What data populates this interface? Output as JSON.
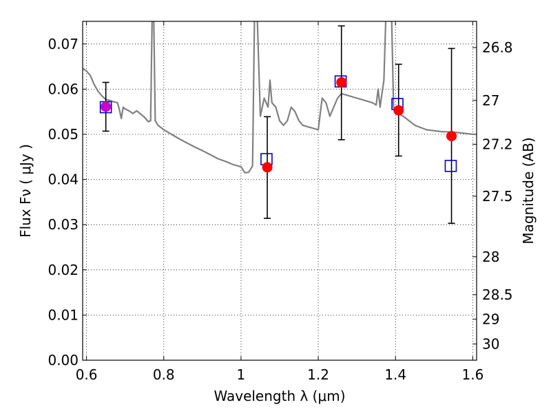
{
  "chart_data": {
    "type": "scatter",
    "xlabel": "Wavelength  λ (μm)",
    "ylabel": "Flux  Fν  ( μJy )",
    "y2label": "Magnitude (AB)",
    "xlim": [
      0.59,
      1.61
    ],
    "ylim": [
      0.0,
      0.075
    ],
    "x_ticks": [
      {
        "value": 0.6,
        "label": "0.6"
      },
      {
        "value": 0.8,
        "label": "0.8"
      },
      {
        "value": 1.0,
        "label": "1"
      },
      {
        "value": 1.2,
        "label": "1.2"
      },
      {
        "value": 1.4,
        "label": "1.4"
      },
      {
        "value": 1.6,
        "label": "1.6"
      }
    ],
    "y_ticks": [
      {
        "value": 0.0,
        "label": "0.00"
      },
      {
        "value": 0.01,
        "label": "0.01"
      },
      {
        "value": 0.02,
        "label": "0.02"
      },
      {
        "value": 0.03,
        "label": "0.03"
      },
      {
        "value": 0.04,
        "label": "0.04"
      },
      {
        "value": 0.05,
        "label": "0.05"
      },
      {
        "value": 0.06,
        "label": "0.06"
      },
      {
        "value": 0.07,
        "label": "0.07"
      }
    ],
    "y2_ticks": [
      {
        "flux": 0.0692,
        "label": "26.8"
      },
      {
        "flux": 0.0575,
        "label": "27"
      },
      {
        "flux": 0.0478,
        "label": "27.2"
      },
      {
        "flux": 0.0363,
        "label": "27.5"
      },
      {
        "flux": 0.0229,
        "label": "28"
      },
      {
        "flux": 0.0145,
        "label": "28.5"
      },
      {
        "flux": 0.0091,
        "label": "29"
      },
      {
        "flux": 0.0036,
        "label": "30"
      }
    ],
    "grid": true,
    "colors": {
      "model": "#808080",
      "observed": "#ff0000",
      "synthetic": "#0000cc",
      "errorbar": "#000000",
      "grid": "#000000"
    },
    "series": [
      {
        "kind": "line",
        "points": [
          [
            0.59,
            0.0646
          ],
          [
            0.6,
            0.064
          ],
          [
            0.61,
            0.063
          ],
          [
            0.62,
            0.061
          ],
          [
            0.63,
            0.0595
          ],
          [
            0.64,
            0.0585
          ],
          [
            0.65,
            0.0577
          ],
          [
            0.66,
            0.0575
          ],
          [
            0.67,
            0.0572
          ],
          [
            0.68,
            0.057
          ],
          [
            0.685,
            0.0555
          ],
          [
            0.69,
            0.0535
          ],
          [
            0.695,
            0.056
          ],
          [
            0.7,
            0.0556
          ],
          [
            0.71,
            0.0552
          ],
          [
            0.72,
            0.0546
          ],
          [
            0.73,
            0.0552
          ],
          [
            0.74,
            0.0545
          ],
          [
            0.75,
            0.0538
          ],
          [
            0.76,
            0.0528
          ],
          [
            0.766,
            0.053
          ],
          [
            0.77,
            0.076
          ],
          [
            0.774,
            0.076
          ],
          [
            0.778,
            0.053
          ],
          [
            0.785,
            0.052
          ],
          [
            0.8,
            0.051
          ],
          [
            0.82,
            0.05
          ],
          [
            0.84,
            0.049
          ],
          [
            0.86,
            0.0481
          ],
          [
            0.88,
            0.0472
          ],
          [
            0.9,
            0.0464
          ],
          [
            0.92,
            0.0455
          ],
          [
            0.94,
            0.0446
          ],
          [
            0.96,
            0.044
          ],
          [
            0.98,
            0.0433
          ],
          [
            1.0,
            0.0428
          ],
          [
            1.01,
            0.0415
          ],
          [
            1.02,
            0.0416
          ],
          [
            1.03,
            0.043
          ],
          [
            1.035,
            0.076
          ],
          [
            1.042,
            0.076
          ],
          [
            1.05,
            0.054
          ],
          [
            1.06,
            0.058
          ],
          [
            1.07,
            0.056
          ],
          [
            1.075,
            0.062
          ],
          [
            1.08,
            0.057
          ],
          [
            1.09,
            0.056
          ],
          [
            1.1,
            0.053
          ],
          [
            1.11,
            0.052
          ],
          [
            1.12,
            0.053
          ],
          [
            1.13,
            0.056
          ],
          [
            1.14,
            0.055
          ],
          [
            1.15,
            0.053
          ],
          [
            1.16,
            0.052
          ],
          [
            1.18,
            0.0515
          ],
          [
            1.2,
            0.051
          ],
          [
            1.21,
            0.058
          ],
          [
            1.22,
            0.057
          ],
          [
            1.23,
            0.054
          ],
          [
            1.24,
            0.056
          ],
          [
            1.25,
            0.058
          ],
          [
            1.26,
            0.059
          ],
          [
            1.28,
            0.0585
          ],
          [
            1.3,
            0.058
          ],
          [
            1.32,
            0.0575
          ],
          [
            1.34,
            0.057
          ],
          [
            1.35,
            0.0565
          ],
          [
            1.355,
            0.06
          ],
          [
            1.36,
            0.056
          ],
          [
            1.37,
            0.062
          ],
          [
            1.375,
            0.076
          ],
          [
            1.39,
            0.076
          ],
          [
            1.395,
            0.056
          ],
          [
            1.4,
            0.055
          ],
          [
            1.42,
            0.054
          ],
          [
            1.45,
            0.052
          ],
          [
            1.48,
            0.051
          ],
          [
            1.5,
            0.0508
          ],
          [
            1.52,
            0.0506
          ],
          [
            1.54,
            0.0505
          ],
          [
            1.56,
            0.0504
          ],
          [
            1.58,
            0.0502
          ],
          [
            1.6,
            0.05
          ],
          [
            1.61,
            0.05
          ]
        ]
      },
      {
        "kind": "observed",
        "x": [
          0.65,
          1.068,
          1.26,
          1.408,
          1.545
        ],
        "y": [
          0.0561,
          0.0427,
          0.0615,
          0.0553,
          0.0496
        ],
        "yerr_low": [
          0.0507,
          0.0314,
          0.0488,
          0.0452,
          0.0303
        ],
        "yerr_high": [
          0.0615,
          0.0539,
          0.074,
          0.0655,
          0.069
        ]
      },
      {
        "kind": "synthetic",
        "x": [
          0.65,
          1.066,
          1.258,
          1.405,
          1.543
        ],
        "y": [
          0.056,
          0.0445,
          0.0617,
          0.0567,
          0.043
        ]
      }
    ]
  }
}
